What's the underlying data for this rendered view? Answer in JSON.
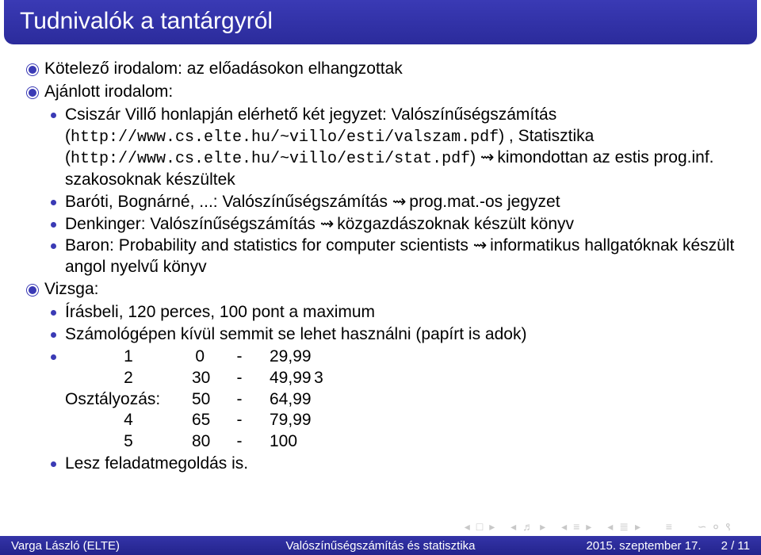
{
  "title": "Tudnivalók a tantárgyról",
  "items": {
    "kotelez": "Kötelező irodalom: az előadásokon elhangzottak",
    "ajanlott": "Ajánlott irodalom:",
    "sub1_a": "Csiszár Villő honlapján elérhető két jegyzet: Valószínűségszámítás (",
    "sub1_url1": "http://www.cs.elte.hu/~villo/esti/valszam.pdf",
    "sub1_b": ") , Statisztika (",
    "sub1_url2": "http://www.cs.elte.hu/~villo/esti/stat.pdf",
    "sub1_c": ") ",
    "sub1_d": " kimondottan az estis prog.inf. szakosoknak készültek",
    "sub2": "Baróti, Bognárné, ...: Valószínűségszámítás ",
    "sub2_b": " prog.mat.-os jegyzet",
    "sub3": "Denkinger: Valószínűségszámítás ",
    "sub3_b": " közgazdászoknak készült könyv",
    "sub4": "Baron: Probability and statistics for computer scientists ",
    "sub4_b": " informatikus hallgatóknak készült angol nyelvű könyv",
    "vizsga": "Vizsga:",
    "vizsga_sub1": "Írásbeli, 120 perces, 100 pont a maximum",
    "vizsga_sub2": "Számológépen kívül semmit se lehet használni (papírt is adok)",
    "osztaly_label": "Osztályozás:",
    "grades": [
      {
        "g": "1",
        "from": "0",
        "to": "29,99"
      },
      {
        "g": "2",
        "from": "30",
        "to": "49,99"
      },
      {
        "g": "3",
        "from": "50",
        "to": "64,99"
      },
      {
        "g": "4",
        "from": "65",
        "to": "79,99"
      },
      {
        "g": "5",
        "from": "80",
        "to": "100"
      }
    ],
    "lesz": "Lesz feladatmegoldás is."
  },
  "footer": {
    "left": "Varga László  (ELTE)",
    "center": "Valószínűségszámítás és statisztika",
    "right_date": "2015. szeptember 17.",
    "right_page": "2 / 11"
  },
  "colors": {
    "header_bg": "#3232aa",
    "bullet": "#3a3ab5",
    "text": "#000000",
    "footer_bg": "#2b2b9b"
  }
}
